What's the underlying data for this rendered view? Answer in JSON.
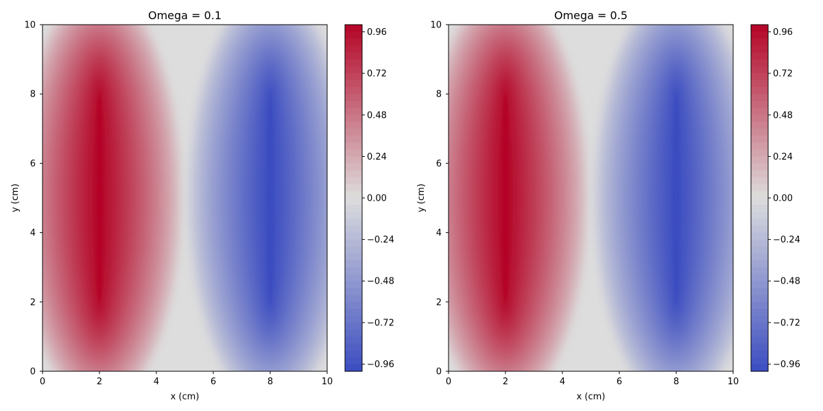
{
  "chart_data": [
    {
      "type": "heatmap",
      "title": "Omega = 0.1",
      "xlabel": "x (cm)",
      "ylabel": "y (cm)",
      "xlim": [
        0,
        10
      ],
      "ylim": [
        0,
        10
      ],
      "xticks": [
        "0",
        "2",
        "4",
        "6",
        "8",
        "10"
      ],
      "yticks": [
        "0",
        "2",
        "4",
        "6",
        "8",
        "10"
      ],
      "colormap": "coolwarm",
      "value_range": [
        -1,
        1
      ],
      "positive_peak": {
        "x": 2,
        "y_from": 2,
        "y_to": 8,
        "value": 1
      },
      "negative_peak": {
        "x": 8,
        "y_from": 2,
        "y_to": 8,
        "value": -1
      },
      "colorbar_ticks": [
        "0.96",
        "0.72",
        "0.48",
        "0.24",
        "0.00",
        "−0.24",
        "−0.48",
        "−0.72",
        "−0.96"
      ]
    },
    {
      "type": "heatmap",
      "title": "Omega = 0.5",
      "xlabel": "x (cm)",
      "ylabel": "y (cm)",
      "xlim": [
        0,
        10
      ],
      "ylim": [
        0,
        10
      ],
      "xticks": [
        "0",
        "2",
        "4",
        "6",
        "8",
        "10"
      ],
      "yticks": [
        "0",
        "2",
        "4",
        "6",
        "8",
        "10"
      ],
      "colormap": "coolwarm",
      "value_range": [
        -1,
        1
      ],
      "positive_peak": {
        "x": 2,
        "y_from": 2,
        "y_to": 8,
        "value": 1
      },
      "negative_peak": {
        "x": 8,
        "y_from": 2,
        "y_to": 8,
        "value": -1
      },
      "colorbar_ticks": [
        "0.96",
        "0.72",
        "0.48",
        "0.24",
        "0.00",
        "−0.24",
        "−0.48",
        "−0.72",
        "−0.96"
      ]
    }
  ],
  "colors": {
    "max": "#b40426",
    "mid": "#dddddd",
    "min": "#3b4cc0"
  }
}
